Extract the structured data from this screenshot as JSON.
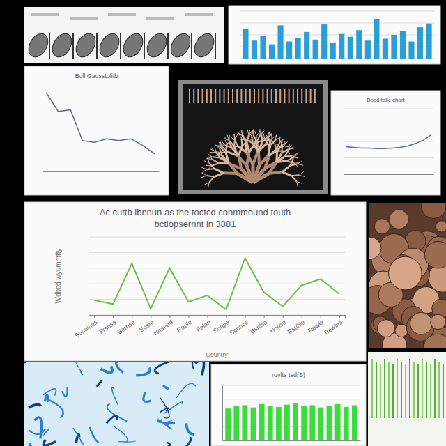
{
  "chart_data": [
    {
      "type": "line",
      "title": "Ac cuttb lbnnun as the toctcd conmmound touth",
      "subtitle": "bctlopsernnt in 3881",
      "x_label": "Country",
      "y_label": "Wdbcd wyummtty",
      "categories": [
        "Sonaines",
        "Frsnsa",
        "Berhse",
        "Eoste",
        "Hpaead",
        "Raule",
        "Falan",
        "Sonpe",
        "Sponce",
        "Bsnlsa",
        "Hopse",
        "Rsuhie",
        "Rowla",
        "Bewlna"
      ],
      "values": [
        19,
        14,
        66,
        8,
        60,
        17,
        25,
        7,
        73,
        29,
        11,
        38,
        46,
        27
      ],
      "color": "#6cc04a",
      "ylim": [
        0,
        100
      ],
      "yticks": [
        0,
        20,
        40,
        60,
        80,
        100
      ],
      "grid": true,
      "tick_labels": "x"
    },
    {
      "type": "bar",
      "categories": [
        null,
        null,
        null,
        null,
        null,
        null,
        null,
        null,
        null,
        null,
        null,
        null,
        null,
        null,
        null,
        null,
        null,
        null,
        null,
        null,
        null,
        null
      ],
      "values": [
        62,
        38,
        48,
        30,
        70,
        36,
        44,
        56,
        40,
        72,
        34,
        52,
        46,
        60,
        38,
        84,
        42,
        50,
        58,
        36,
        66,
        74
      ],
      "color": "#2a9fd6",
      "ylim": [
        0,
        100
      ],
      "yticks": [
        0,
        25,
        50,
        75,
        100
      ],
      "grid": true,
      "tick_labels": false
    },
    {
      "type": "line",
      "title": "Bcll Gacsstolitb",
      "categories": [
        null,
        null,
        null,
        null,
        null,
        null,
        null,
        null,
        null,
        null
      ],
      "values": [
        92,
        70,
        72,
        36,
        34,
        38,
        36,
        38,
        30,
        20
      ],
      "color": "#5b6b8c",
      "ylim": [
        0,
        100
      ],
      "yticks": [
        0,
        25,
        50,
        75,
        100
      ],
      "grid": false,
      "tick_labels": false
    },
    {
      "type": "line",
      "title": "Bocd tallc chart",
      "categories": [
        null,
        null,
        null,
        null,
        null,
        null,
        null,
        null,
        null,
        null,
        null,
        null
      ],
      "values": [
        42,
        41,
        40,
        40,
        39,
        39,
        40,
        41,
        43,
        47,
        52,
        60
      ],
      "color": "#4a6fa5",
      "ylim": [
        0,
        100
      ],
      "yticks": [
        0,
        25,
        50,
        75,
        100
      ],
      "grid": true,
      "tick_labels": false
    },
    {
      "type": "bar",
      "title": "rovlts tsd(S)",
      "categories": [
        null,
        null,
        null,
        null,
        null,
        null,
        null,
        null,
        null,
        null,
        null,
        null,
        null,
        null,
        null,
        null
      ],
      "values": [
        58,
        62,
        64,
        60,
        66,
        63,
        61,
        65,
        67,
        62,
        64,
        60,
        63,
        66,
        61,
        64
      ],
      "color": "#3ddc3d",
      "ylim": [
        0,
        100
      ],
      "yticks": [
        0,
        25,
        50,
        75,
        100
      ],
      "grid": true,
      "tick_labels": false
    }
  ]
}
